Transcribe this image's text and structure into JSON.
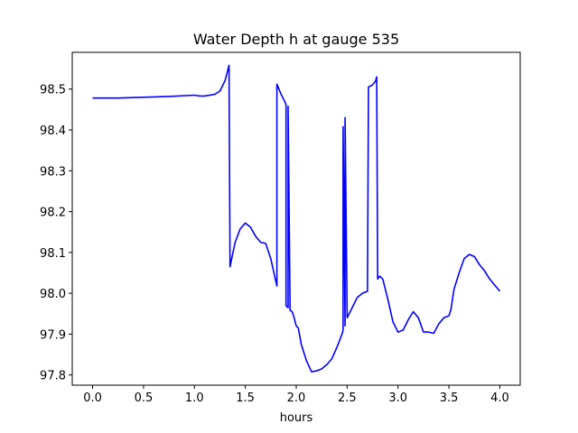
{
  "chart_data": {
    "type": "line",
    "title": "Water Depth h at gauge 535",
    "xlabel": "hours",
    "ylabel": "",
    "xlim": [
      -0.2,
      4.2
    ],
    "ylim": [
      97.775,
      98.59
    ],
    "xticks": [
      0.0,
      0.5,
      1.0,
      1.5,
      2.0,
      2.5,
      3.0,
      3.5,
      4.0
    ],
    "xtick_labels": [
      "0.0",
      "0.5",
      "1.0",
      "1.5",
      "2.0",
      "2.5",
      "3.0",
      "3.5",
      "4.0"
    ],
    "yticks": [
      97.8,
      97.9,
      98.0,
      98.1,
      98.2,
      98.3,
      98.4,
      98.5
    ],
    "ytick_labels": [
      "97.8",
      "97.9",
      "98.0",
      "98.1",
      "98.2",
      "98.3",
      "98.4",
      "98.5"
    ],
    "grid": false,
    "series": [
      {
        "color": "#0000ff",
        "x": [
          0.0,
          0.25,
          0.5,
          0.75,
          1.0,
          1.05,
          1.1,
          1.2,
          1.25,
          1.3,
          1.34,
          1.35,
          1.37,
          1.4,
          1.45,
          1.5,
          1.55,
          1.6,
          1.65,
          1.7,
          1.75,
          1.79,
          1.81,
          1.81,
          1.85,
          1.89,
          1.9,
          1.9,
          1.92,
          1.92,
          1.94,
          1.96,
          1.98,
          2.0,
          2.02,
          2.05,
          2.1,
          2.15,
          2.2,
          2.25,
          2.3,
          2.35,
          2.4,
          2.45,
          2.46,
          2.46,
          2.48,
          2.48,
          2.5,
          2.55,
          2.6,
          2.65,
          2.7,
          2.71,
          2.75,
          2.78,
          2.79,
          2.8,
          2.82,
          2.85,
          2.9,
          2.95,
          3.0,
          3.05,
          3.1,
          3.15,
          3.2,
          3.25,
          3.3,
          3.35,
          3.4,
          3.45,
          3.5,
          3.52,
          3.55,
          3.6,
          3.65,
          3.7,
          3.75,
          3.8,
          3.85,
          3.9,
          3.95,
          4.0
        ],
        "y": [
          98.478,
          98.478,
          98.48,
          98.482,
          98.485,
          98.483,
          98.483,
          98.487,
          98.495,
          98.52,
          98.558,
          98.065,
          98.09,
          98.125,
          98.158,
          98.172,
          98.162,
          98.14,
          98.125,
          98.122,
          98.085,
          98.04,
          98.018,
          98.512,
          98.488,
          98.468,
          98.462,
          97.97,
          97.965,
          98.458,
          97.958,
          97.955,
          97.94,
          97.92,
          97.915,
          97.875,
          97.835,
          97.808,
          97.81,
          97.815,
          97.825,
          97.84,
          97.868,
          97.9,
          97.91,
          98.408,
          97.92,
          98.43,
          97.94,
          97.965,
          97.99,
          98.0,
          98.005,
          98.505,
          98.51,
          98.52,
          98.53,
          98.035,
          98.042,
          98.035,
          97.985,
          97.93,
          97.905,
          97.91,
          97.935,
          97.955,
          97.94,
          97.905,
          97.905,
          97.902,
          97.925,
          97.94,
          97.945,
          97.96,
          98.01,
          98.05,
          98.085,
          98.095,
          98.09,
          98.07,
          98.055,
          98.035,
          98.02,
          98.005
        ]
      }
    ]
  }
}
